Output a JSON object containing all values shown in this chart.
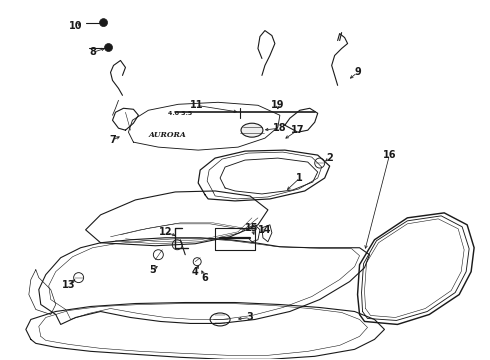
{
  "bg_color": "#ffffff",
  "line_color": "#1a1a1a",
  "fig_width": 4.9,
  "fig_height": 3.6,
  "dpi": 100,
  "label_fontsize": 7.0,
  "lw": 0.8
}
